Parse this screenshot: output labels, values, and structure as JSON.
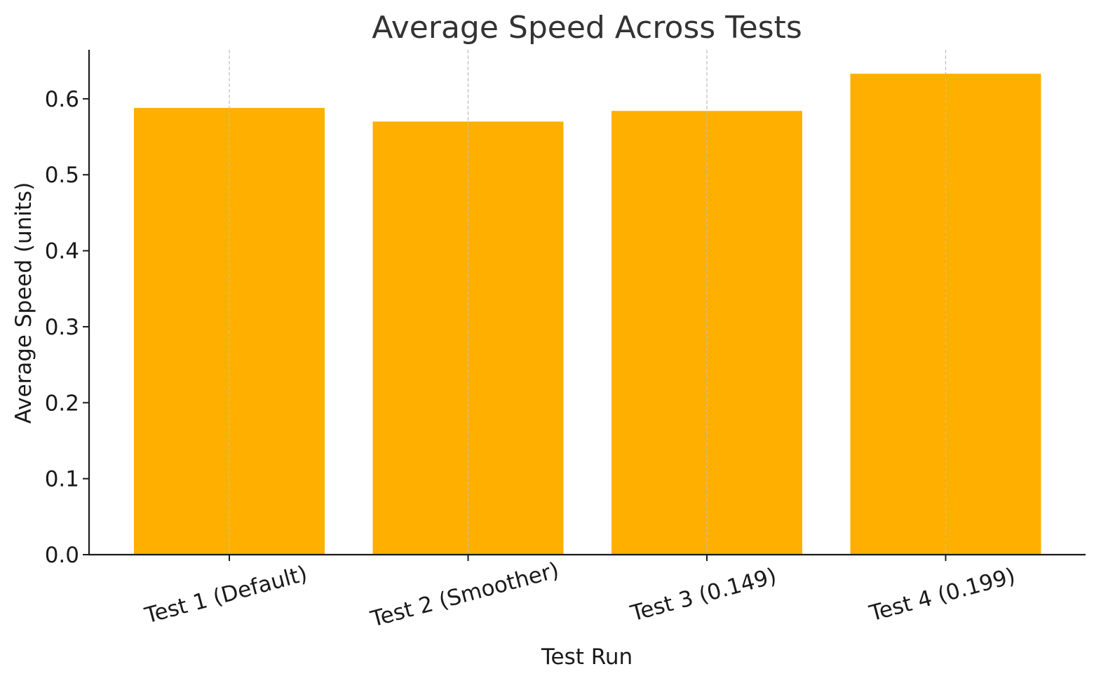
{
  "chart_data": {
    "type": "bar",
    "title": "Average Speed Across Tests",
    "xlabel": "Test Run",
    "ylabel": "Average Speed (units)",
    "categories": [
      "Test 1 (Default)",
      "Test 2 (Smoother)",
      "Test 3 (0.149)",
      "Test 4 (0.199)"
    ],
    "values": [
      0.588,
      0.57,
      0.584,
      0.633
    ],
    "ylim": [
      0,
      0.6645
    ],
    "yticks": [
      0.0,
      0.1,
      0.2,
      0.3,
      0.4,
      0.5,
      0.6
    ],
    "ytick_labels": [
      "0.0",
      "0.1",
      "0.2",
      "0.3",
      "0.4",
      "0.5",
      "0.6"
    ],
    "grid": "vertical dashed",
    "legend": "none",
    "colors": {
      "bar": "#ffaf00",
      "axis": "#1a1a1a",
      "grid": "#bdbdbd",
      "text": "#1a1a1a",
      "title": "#333333"
    }
  }
}
